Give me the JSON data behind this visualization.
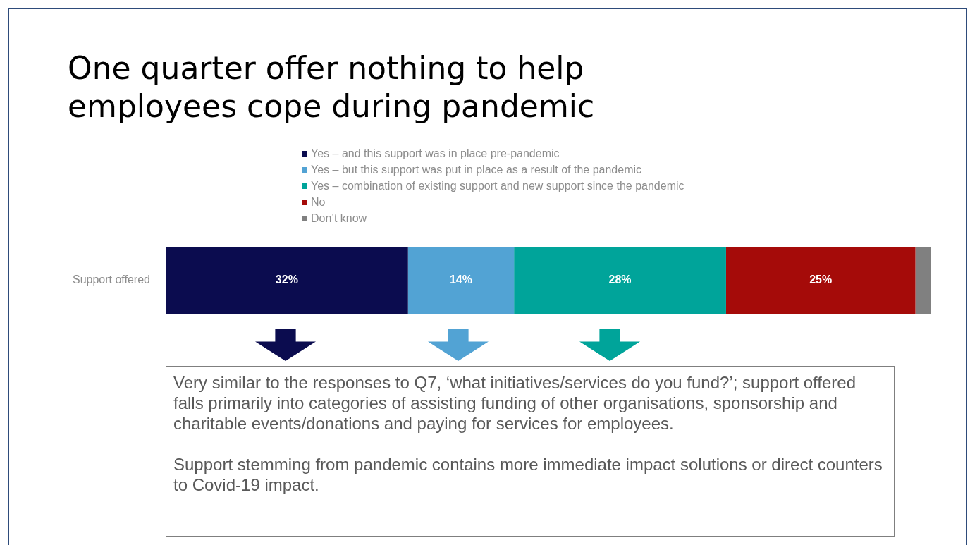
{
  "chart_data": {
    "type": "bar",
    "orientation": "horizontal",
    "stacked": true,
    "title": "One quarter offer nothing to help employees cope during pandemic",
    "categories": [
      "Support offered"
    ],
    "legend": "top",
    "series": [
      {
        "name": "Yes – and this support was in place pre-pandemic",
        "color": "#0b0c4f",
        "values": [
          32
        ],
        "value_labels": [
          "32%"
        ]
      },
      {
        "name": "Yes – but this support was put in place as a result of the pandemic",
        "color": "#52a3d4",
        "values": [
          14
        ],
        "value_labels": [
          "14%"
        ]
      },
      {
        "name": "Yes – combination of existing support and new support since the pandemic",
        "color": "#00a49a",
        "values": [
          28
        ],
        "value_labels": [
          "28%"
        ]
      },
      {
        "name": "No",
        "color": "#a50b09",
        "values": [
          25
        ],
        "value_labels": [
          "25%"
        ]
      },
      {
        "name": "Don’t know",
        "color": "#808080",
        "values": [
          2
        ],
        "value_labels": [
          null
        ]
      }
    ],
    "annotations": [
      "Very similar to the responses to Q7, ‘what initiatives/services  do you fund?’; support offered falls primarily into categories of assisting funding of other organisations, sponsorship and charitable events/donations  and paying for services for employees.",
      "Support stemming from pandemic contains more immediate impact solutions or direct counters to Covid-19 impact."
    ]
  }
}
